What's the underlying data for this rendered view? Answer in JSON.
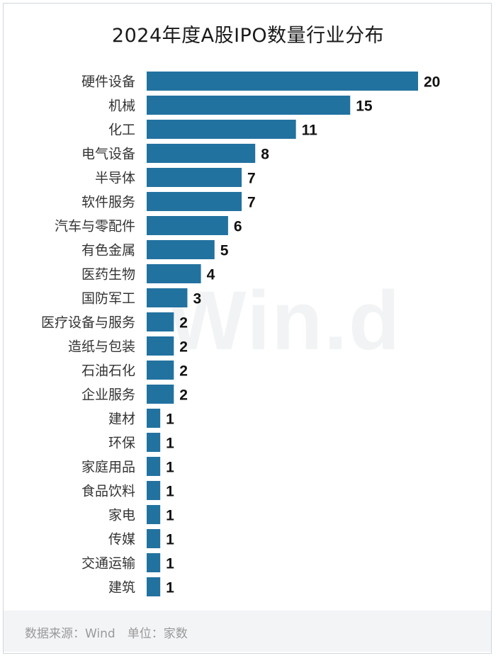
{
  "chart_data": {
    "type": "bar",
    "orientation": "horizontal",
    "title": "2024年度A股IPO数量行业分布",
    "categories": [
      "硬件设备",
      "机械",
      "化工",
      "电气设备",
      "半导体",
      "软件服务",
      "汽车与零配件",
      "有色金属",
      "医药生物",
      "国防军工",
      "医疗设备与服务",
      "造纸与包装",
      "石油石化",
      "企业服务",
      "建材",
      "环保",
      "家庭用品",
      "食品饮料",
      "家电",
      "传媒",
      "交通运输",
      "建筑"
    ],
    "values": [
      20,
      15,
      11,
      8,
      7,
      7,
      6,
      5,
      4,
      3,
      2,
      2,
      2,
      2,
      1,
      1,
      1,
      1,
      1,
      1,
      1,
      1
    ],
    "bar_color": "#2272a0",
    "grid": false,
    "legend": "none",
    "xlim": [
      0,
      20
    ]
  },
  "watermark": "Win.d",
  "footer": {
    "source": "数据来源：Wind　单位：家数"
  }
}
